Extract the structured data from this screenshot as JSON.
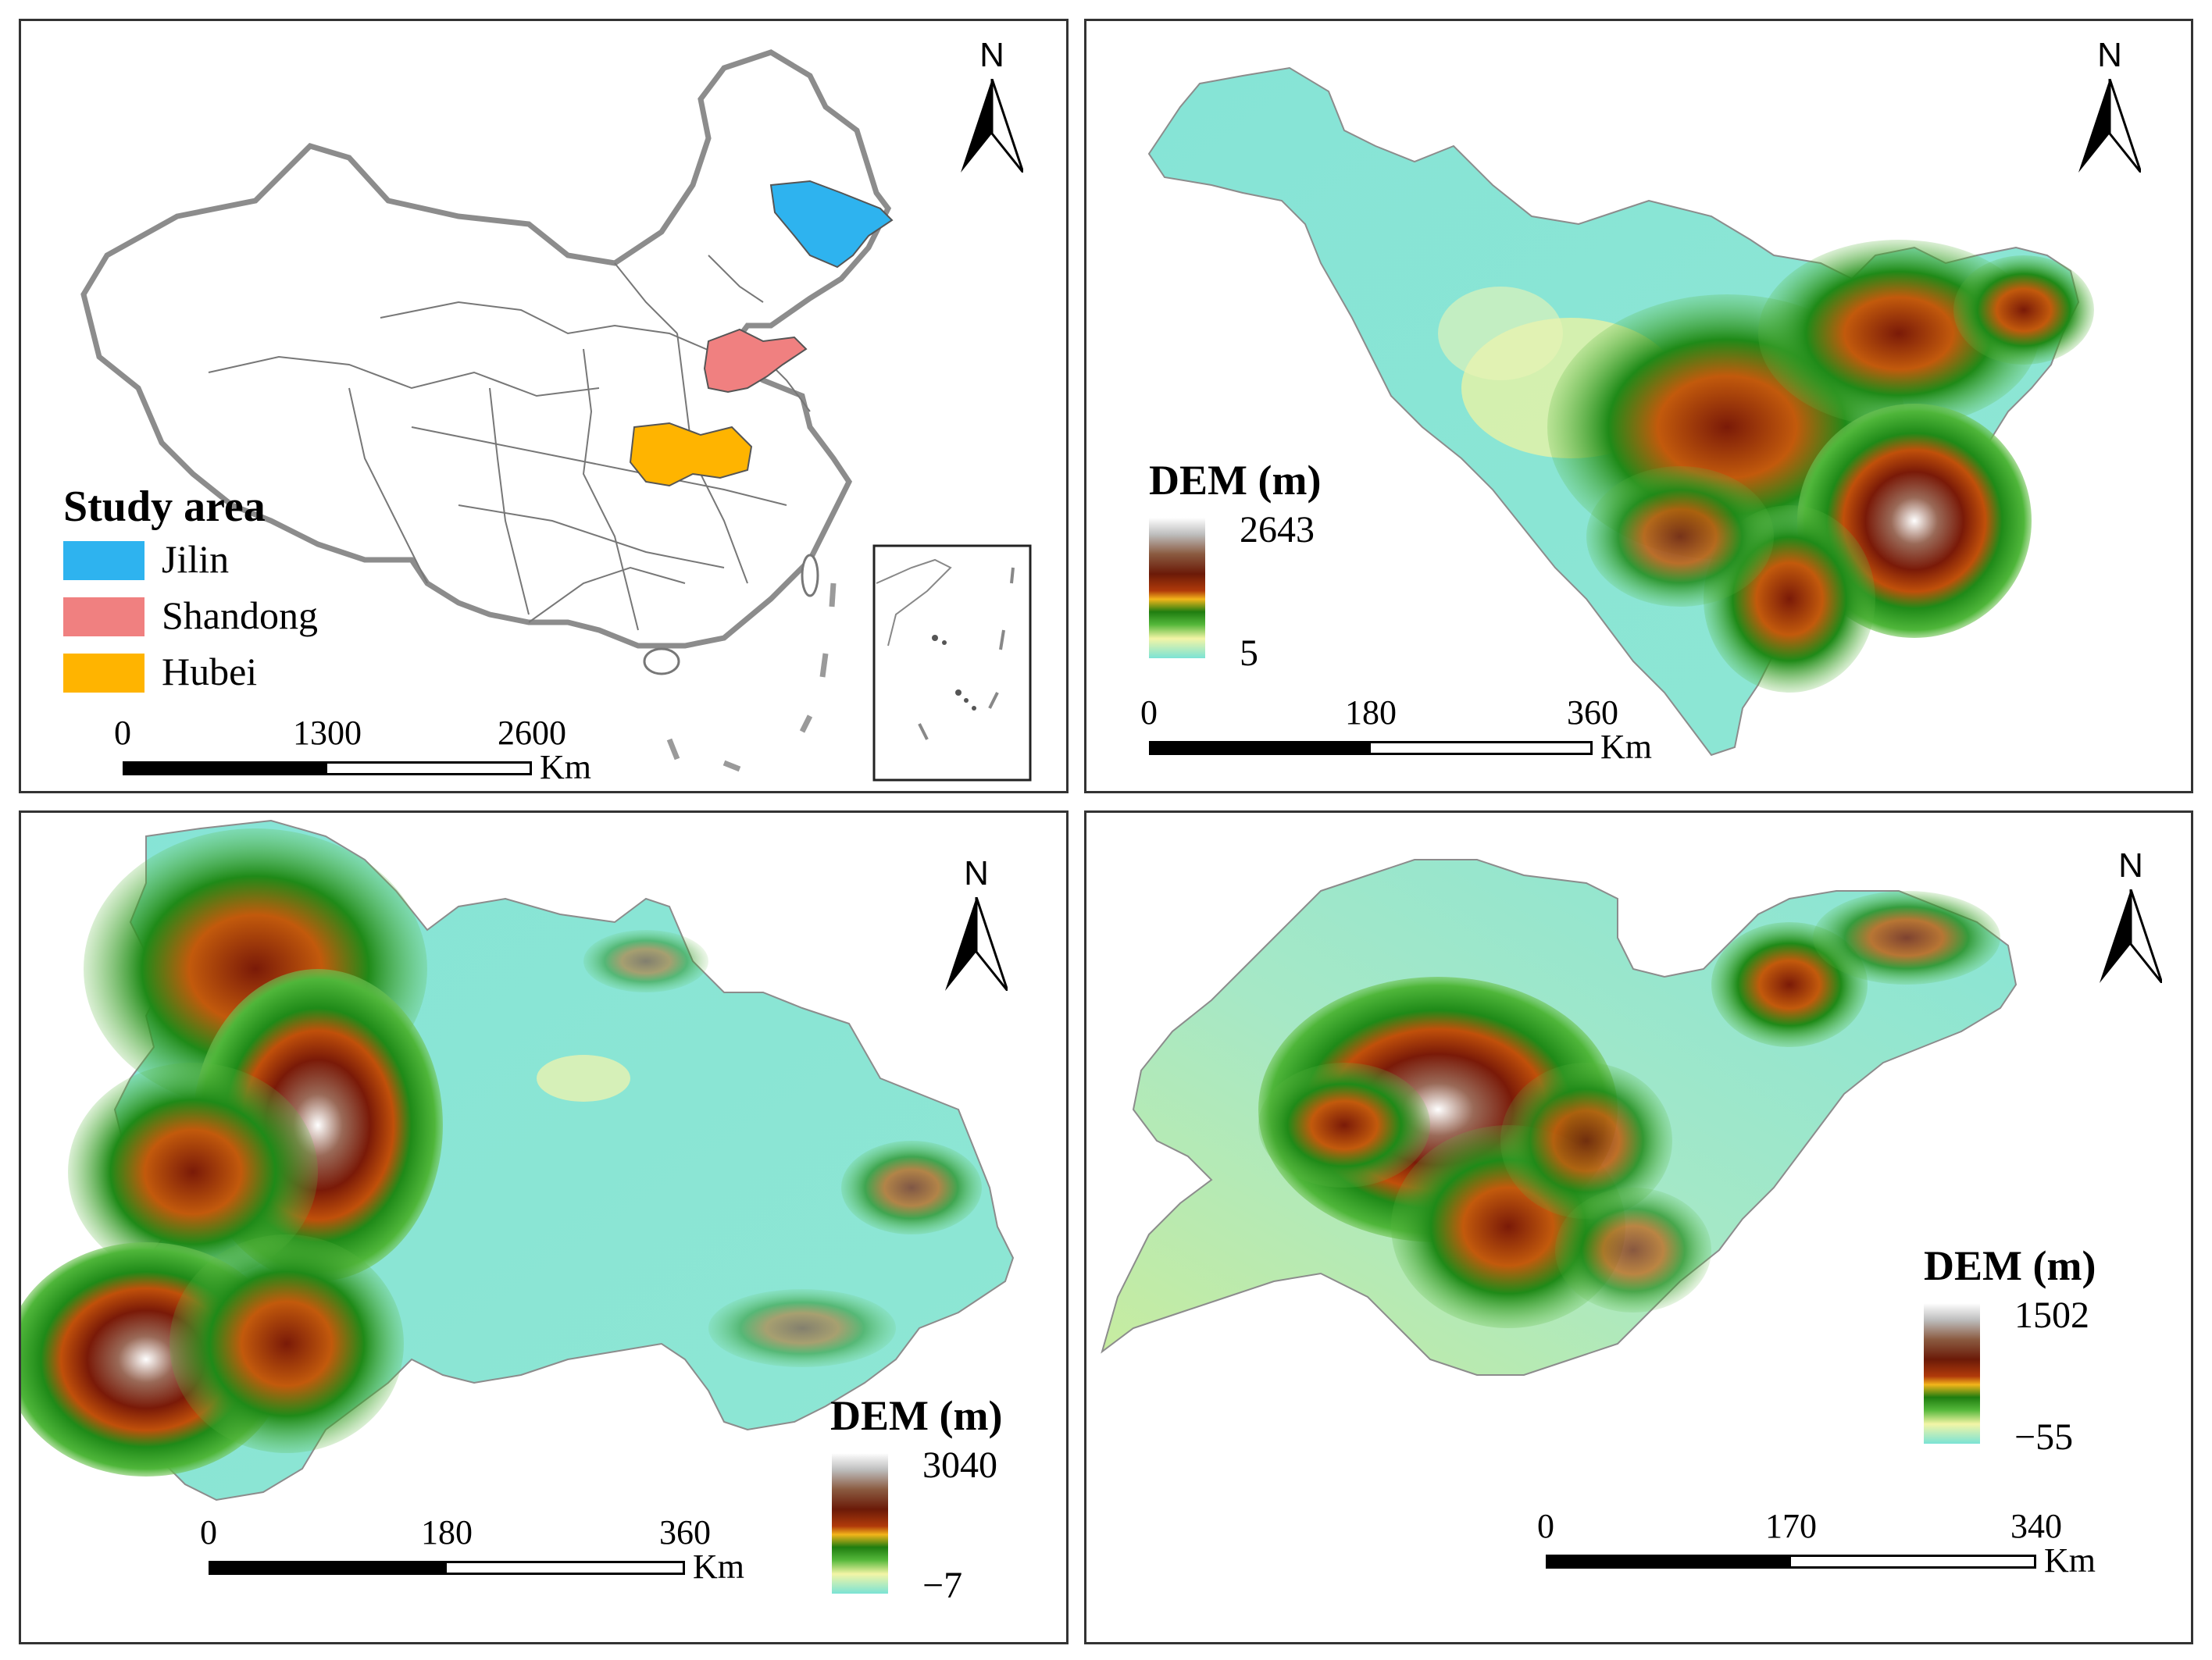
{
  "panels": {
    "china": {
      "north_label": "N",
      "legend": {
        "title": "Study area",
        "items": [
          {
            "label": "Jilin",
            "color": "#2eb3ef"
          },
          {
            "label": "Shandong",
            "color": "#f08080"
          },
          {
            "label": "Hubei",
            "color": "#ffb400"
          }
        ]
      },
      "scale": {
        "ticks": [
          "0",
          "1300",
          "2600"
        ],
        "unit": "Km"
      }
    },
    "jilin": {
      "north_label": "N",
      "legend": {
        "title": "DEM (m)",
        "max": "2643",
        "min": "5"
      },
      "scale": {
        "ticks": [
          "0",
          "180",
          "360"
        ],
        "unit": "Km"
      }
    },
    "hubei": {
      "north_label": "N",
      "legend": {
        "title": "DEM (m)",
        "max": "3040",
        "min": "−7"
      },
      "scale": {
        "ticks": [
          "0",
          "180",
          "360"
        ],
        "unit": "Km"
      }
    },
    "shandong": {
      "north_label": "N",
      "legend": {
        "title": "DEM (m)",
        "max": "1502",
        "min": "−55"
      },
      "scale": {
        "ticks": [
          "0",
          "170",
          "340"
        ],
        "unit": "Km"
      }
    }
  },
  "colors": {
    "dem_low": "#7be3d5",
    "dem_light": "#f3f5a6",
    "dem_green": "#1f9a1c",
    "dem_orange": "#f0a020",
    "dem_brown": "#7a1a08",
    "dem_peak": "#ffffff",
    "border_gray": "#8c8c8c"
  }
}
